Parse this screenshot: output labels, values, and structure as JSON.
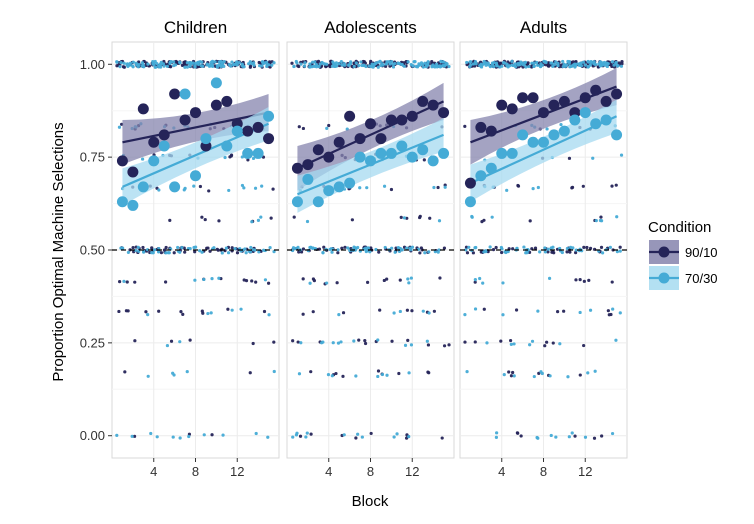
{
  "chart_data": {
    "type": "scatter",
    "title": "",
    "xlabel": "Block",
    "ylabel": "Proportion Optimal Machine Selections",
    "xlim": [
      0,
      16
    ],
    "ylim": [
      -0.06,
      1.06
    ],
    "x_ticks": [
      4,
      8,
      12
    ],
    "x_tick_labels": [
      "4",
      "8",
      "12"
    ],
    "y_ticks": [
      0,
      0.25,
      0.5,
      0.75,
      1
    ],
    "y_tick_labels": [
      "0.00",
      "0.25",
      "0.50",
      "0.75",
      "1.00"
    ],
    "reference_line": {
      "y": 0.5,
      "style": "dashed"
    },
    "grid": true,
    "legend": {
      "title": "Condition",
      "placement": "right",
      "entries": [
        {
          "label": "90/10",
          "color": "#252459",
          "band": "#8584ad"
        },
        {
          "label": "70/30",
          "color": "#45abd6",
          "band": "#a6daf0"
        }
      ]
    },
    "facets": [
      {
        "title": "Children",
        "series": [
          {
            "name": "90/10",
            "blocks": [
              1,
              2,
              3,
              4,
              5,
              6,
              7,
              8,
              9,
              10,
              11,
              12,
              13,
              14,
              15
            ],
            "means": [
              0.74,
              0.71,
              0.88,
              0.79,
              0.81,
              0.92,
              0.85,
              0.87,
              0.78,
              0.89,
              0.9,
              0.84,
              0.82,
              0.83,
              0.8
            ],
            "trend": [
              0.79,
              0.87
            ]
          },
          {
            "name": "70/30",
            "blocks": [
              1,
              2,
              3,
              4,
              5,
              6,
              7,
              8,
              9,
              10,
              11,
              12,
              13,
              14,
              15
            ],
            "means": [
              0.63,
              0.62,
              0.67,
              0.74,
              0.78,
              0.67,
              0.92,
              0.7,
              0.8,
              0.95,
              0.78,
              0.82,
              0.76,
              0.76,
              0.86
            ],
            "trend": [
              0.67,
              0.84
            ]
          }
        ]
      },
      {
        "title": "Adolescents",
        "series": [
          {
            "name": "90/10",
            "blocks": [
              1,
              2,
              3,
              4,
              5,
              6,
              7,
              8,
              9,
              10,
              11,
              12,
              13,
              14,
              15
            ],
            "means": [
              0.72,
              0.73,
              0.77,
              0.75,
              0.79,
              0.86,
              0.8,
              0.84,
              0.8,
              0.85,
              0.85,
              0.86,
              0.9,
              0.89,
              0.87
            ],
            "trend": [
              0.72,
              0.9
            ]
          },
          {
            "name": "70/30",
            "blocks": [
              1,
              2,
              3,
              4,
              5,
              6,
              7,
              8,
              9,
              10,
              11,
              12,
              13,
              14,
              15
            ],
            "means": [
              0.63,
              0.69,
              0.63,
              0.66,
              0.67,
              0.68,
              0.75,
              0.74,
              0.76,
              0.76,
              0.78,
              0.75,
              0.77,
              0.74,
              0.76
            ],
            "trend": [
              0.65,
              0.81
            ]
          }
        ]
      },
      {
        "title": "Adults",
        "series": [
          {
            "name": "90/10",
            "blocks": [
              1,
              2,
              3,
              4,
              5,
              6,
              7,
              8,
              9,
              10,
              11,
              12,
              13,
              14,
              15
            ],
            "means": [
              0.68,
              0.83,
              0.82,
              0.89,
              0.88,
              0.91,
              0.91,
              0.87,
              0.89,
              0.9,
              0.87,
              0.91,
              0.93,
              0.9,
              0.92
            ],
            "trend": [
              0.79,
              0.94
            ]
          },
          {
            "name": "70/30",
            "blocks": [
              1,
              2,
              3,
              4,
              5,
              6,
              7,
              8,
              9,
              10,
              11,
              12,
              13,
              14,
              15
            ],
            "means": [
              0.63,
              0.7,
              0.72,
              0.76,
              0.76,
              0.81,
              0.79,
              0.79,
              0.81,
              0.82,
              0.85,
              0.87,
              0.84,
              0.85,
              0.81
            ],
            "trend": [
              0.68,
              0.86
            ]
          }
        ]
      }
    ]
  }
}
